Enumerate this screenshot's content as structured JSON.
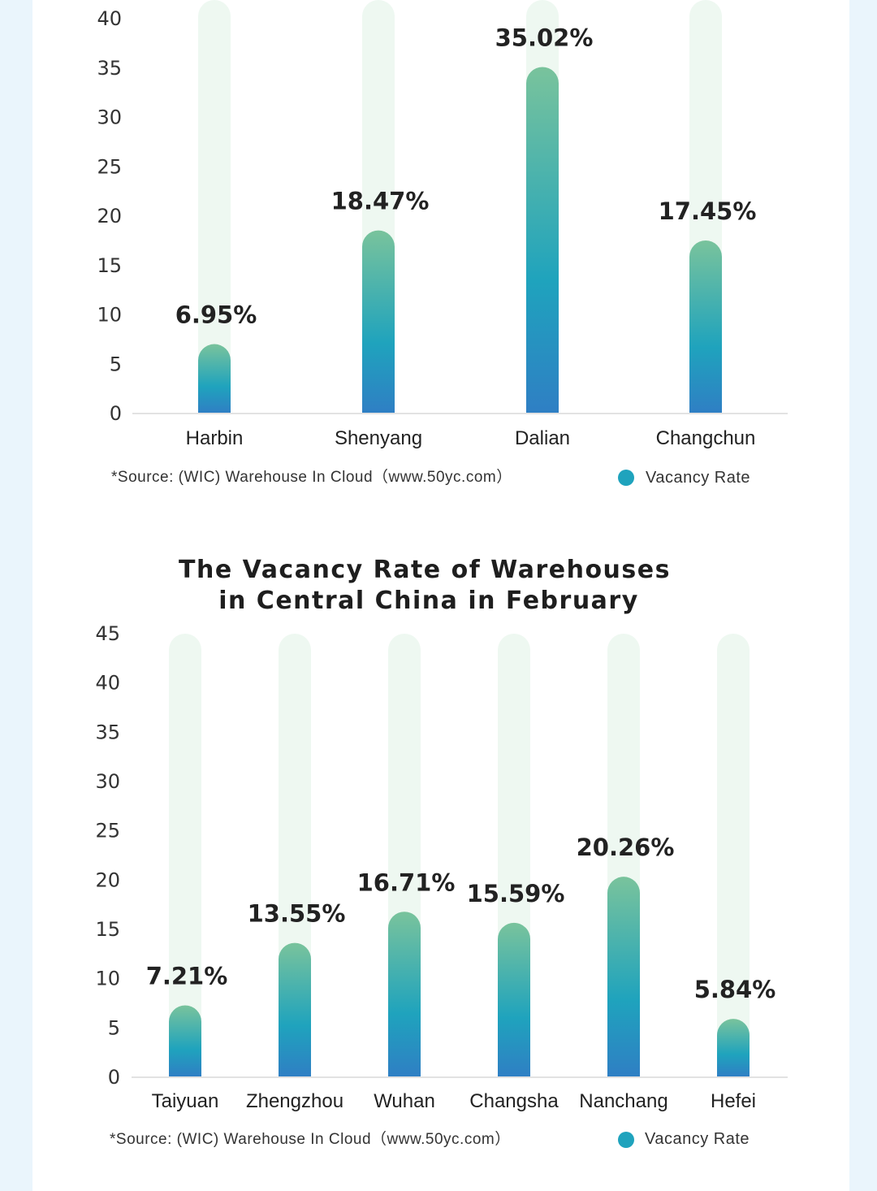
{
  "colors": {
    "background": "#eaf5fc",
    "panel": "#ffffff",
    "track": "#eef8f1",
    "bar_top": "#79c39c",
    "bar_mid": "#1fa3bd",
    "bar_bottom": "#2f7fc4",
    "legend_dot": "#1fa3bd",
    "axis": "#d9d9d9"
  },
  "chart_data": [
    {
      "type": "bar",
      "title": "",
      "categories": [
        "Harbin",
        "Shenyang",
        "Dalian",
        "Changchun"
      ],
      "values": [
        6.95,
        18.47,
        35.02,
        17.45
      ],
      "value_labels": [
        "6.95%",
        "18.47%",
        "35.02%",
        "17.45%"
      ],
      "series_name": "Vacancy Rate",
      "ylim": [
        0,
        40
      ],
      "yticks": [
        "0",
        "5",
        "10",
        "15",
        "20",
        "25",
        "30",
        "35",
        "40"
      ],
      "xlabel": "",
      "ylabel": "",
      "source": "*Source: (WIC) Warehouse In Cloud（www.50yc.com）",
      "legend": "Vacancy Rate"
    },
    {
      "type": "bar",
      "title_lines": [
        "The Vacancy Rate of Warehouses",
        "in Central China in February"
      ],
      "categories": [
        "Taiyuan",
        "Zhengzhou",
        "Wuhan",
        "Changsha",
        "Nanchang",
        "Hefei"
      ],
      "values": [
        7.21,
        13.55,
        16.71,
        15.59,
        20.26,
        5.84
      ],
      "value_labels": [
        "7.21%",
        "13.55%",
        "16.71%",
        "15.59%",
        "20.26%",
        "5.84%"
      ],
      "series_name": "Vacancy Rate",
      "ylim": [
        0,
        45
      ],
      "yticks": [
        "0",
        "5",
        "10",
        "15",
        "20",
        "25",
        "30",
        "35",
        "40",
        "45"
      ],
      "xlabel": "",
      "ylabel": "",
      "source": "*Source: (WIC) Warehouse In Cloud（www.50yc.com）",
      "legend": "Vacancy Rate"
    }
  ]
}
